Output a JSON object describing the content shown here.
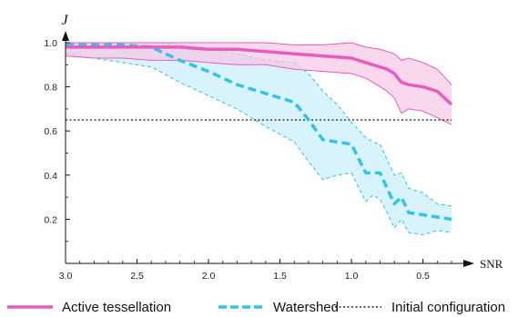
{
  "chart_data": {
    "type": "line",
    "xlabel": "SNR",
    "ylabel": "J",
    "x_reversed": true,
    "xlim": [
      3.0,
      0.3
    ],
    "ylim": [
      0.0,
      1.08
    ],
    "x_ticks": [
      3.0,
      2.5,
      2.0,
      1.5,
      1.0,
      0.5
    ],
    "x_tick_labels": [
      "3.0",
      "2.5",
      "2.0",
      "1.5",
      "1.0",
      "0.5"
    ],
    "y_ticks": [
      0.2,
      0.4,
      0.6,
      0.8,
      1.0
    ],
    "y_tick_labels": [
      "0.2",
      "0.4",
      "0.6",
      "0.8",
      "1.0"
    ],
    "grid": false,
    "legend_position": "bottom",
    "series": [
      {
        "name": "Active tessellation",
        "color": "#e85cbf",
        "fill": "#f7c6e6",
        "style": "solid",
        "x": [
          3.0,
          2.8,
          2.6,
          2.4,
          2.2,
          2.0,
          1.8,
          1.6,
          1.4,
          1.2,
          1.0,
          0.9,
          0.8,
          0.75,
          0.7,
          0.65,
          0.6,
          0.5,
          0.4,
          0.3
        ],
        "values": [
          0.98,
          0.98,
          0.98,
          0.98,
          0.98,
          0.97,
          0.97,
          0.96,
          0.95,
          0.94,
          0.93,
          0.91,
          0.89,
          0.88,
          0.86,
          0.82,
          0.81,
          0.8,
          0.78,
          0.72
        ],
        "upper": [
          1.0,
          1.0,
          1.0,
          1.0,
          1.0,
          1.0,
          1.0,
          1.0,
          0.99,
          0.99,
          1.0,
          0.98,
          0.97,
          0.96,
          0.95,
          0.92,
          0.93,
          0.91,
          0.88,
          0.81
        ],
        "lower": [
          0.94,
          0.93,
          0.93,
          0.92,
          0.92,
          0.91,
          0.9,
          0.9,
          0.88,
          0.87,
          0.86,
          0.84,
          0.8,
          0.78,
          0.75,
          0.68,
          0.7,
          0.69,
          0.66,
          0.63
        ]
      },
      {
        "name": "Watershed",
        "color": "#2ec4ec",
        "fill": "#c8eefa",
        "style": "dashed",
        "x": [
          3.0,
          2.8,
          2.6,
          2.4,
          2.2,
          2.0,
          1.8,
          1.6,
          1.4,
          1.3,
          1.2,
          1.1,
          1.0,
          0.9,
          0.85,
          0.8,
          0.75,
          0.7,
          0.65,
          0.6,
          0.5,
          0.4,
          0.3
        ],
        "values": [
          0.99,
          0.99,
          0.99,
          0.98,
          0.92,
          0.87,
          0.81,
          0.77,
          0.73,
          0.65,
          0.56,
          0.55,
          0.54,
          0.41,
          0.41,
          0.41,
          0.34,
          0.27,
          0.3,
          0.23,
          0.22,
          0.21,
          0.2
        ],
        "upper": [
          1.0,
          1.0,
          1.0,
          1.0,
          0.99,
          0.97,
          0.95,
          0.92,
          0.91,
          0.86,
          0.78,
          0.72,
          0.64,
          0.57,
          0.55,
          0.54,
          0.47,
          0.4,
          0.41,
          0.34,
          0.32,
          0.27,
          0.26
        ],
        "lower": [
          0.95,
          0.93,
          0.91,
          0.89,
          0.82,
          0.76,
          0.7,
          0.62,
          0.55,
          0.46,
          0.38,
          0.4,
          0.41,
          0.28,
          0.31,
          0.29,
          0.23,
          0.16,
          0.2,
          0.14,
          0.13,
          0.15,
          0.14
        ]
      },
      {
        "name": "Initial configuration",
        "color": "#000000",
        "style": "dotted",
        "constant": 0.65
      }
    ]
  }
}
